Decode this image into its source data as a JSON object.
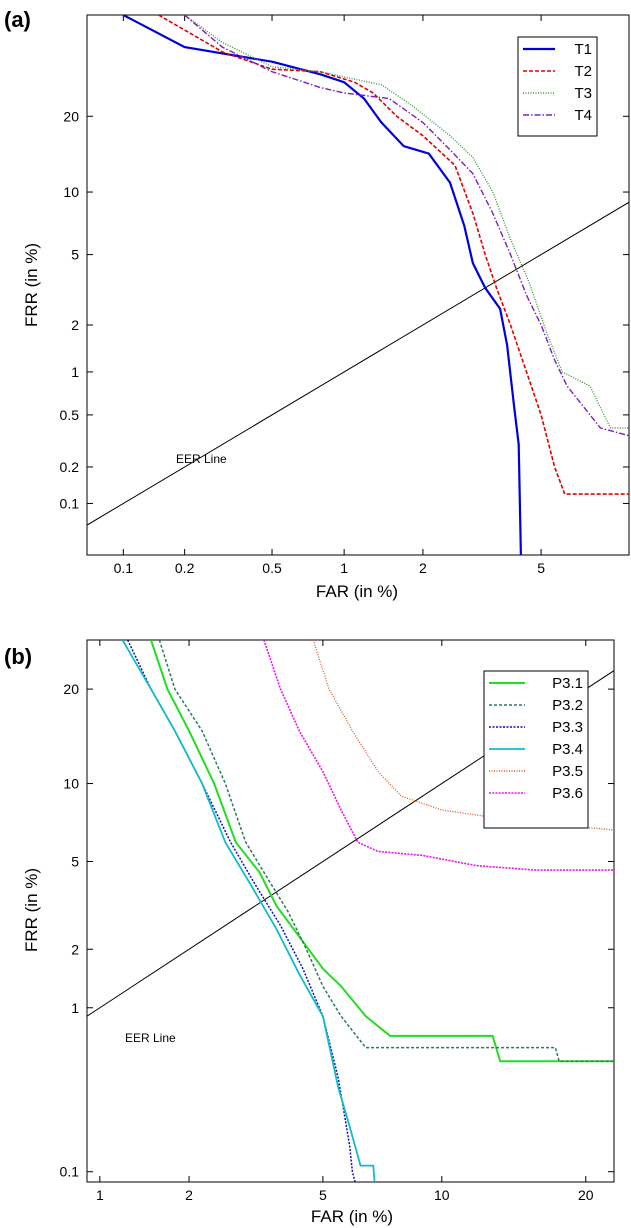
{
  "chart_data": [
    {
      "type": "line",
      "panel_label": "(a)",
      "xlabel": "FAR (in %)",
      "ylabel": "FRR (in %)",
      "xscale": "normal-deviate",
      "yscale": "normal-deviate",
      "xlim": [
        0.065,
        9.0
      ],
      "ylim": [
        0.035,
        40
      ],
      "xticks": [
        {
          "v": 0.1,
          "label": "0.1"
        },
        {
          "v": 0.2,
          "label": "0.2"
        },
        {
          "v": 0.5,
          "label": "0.5"
        },
        {
          "v": 1,
          "label": "1"
        },
        {
          "v": 2,
          "label": "2"
        },
        {
          "v": 5,
          "label": "5"
        }
      ],
      "yticks": [
        {
          "v": 0.1,
          "label": "0.1"
        },
        {
          "v": 0.2,
          "label": "0.2"
        },
        {
          "v": 0.5,
          "label": "0.5"
        },
        {
          "v": 1,
          "label": "1"
        },
        {
          "v": 2,
          "label": "2"
        },
        {
          "v": 5,
          "label": "5"
        },
        {
          "v": 10,
          "label": "10"
        },
        {
          "v": 20,
          "label": "20"
        }
      ],
      "eer_label": "EER Line",
      "legend_position": "top-right",
      "series": [
        {
          "name": "T1",
          "color": "#0000dd",
          "dash": "",
          "width": 2.2,
          "points": [
            [
              0.1,
              40
            ],
            [
              0.2,
              33
            ],
            [
              0.5,
              30
            ],
            [
              0.8,
              27.5
            ],
            [
              1.0,
              26
            ],
            [
              1.2,
              23
            ],
            [
              1.4,
              19
            ],
            [
              1.7,
              15.5
            ],
            [
              2.1,
              14.5
            ],
            [
              2.5,
              11
            ],
            [
              2.8,
              7
            ],
            [
              3.0,
              4.5
            ],
            [
              3.3,
              3.3
            ],
            [
              3.7,
              2.5
            ],
            [
              3.9,
              1.5
            ],
            [
              4.1,
              0.6
            ],
            [
              4.25,
              0.3
            ],
            [
              4.32,
              0.035
            ]
          ]
        },
        {
          "name": "T2",
          "color": "#e00000",
          "dash": "4,2",
          "width": 1.6,
          "points": [
            [
              0.15,
              40
            ],
            [
              0.3,
              32
            ],
            [
              0.5,
              28.5
            ],
            [
              0.8,
              28
            ],
            [
              1.1,
              26
            ],
            [
              1.3,
              24
            ],
            [
              1.6,
              20
            ],
            [
              2.0,
              17
            ],
            [
              2.6,
              13
            ],
            [
              3.0,
              8
            ],
            [
              3.3,
              5
            ],
            [
              3.6,
              3.3
            ],
            [
              4.0,
              2.0
            ],
            [
              4.5,
              1.0
            ],
            [
              5.0,
              0.5
            ],
            [
              5.5,
              0.2
            ],
            [
              5.9,
              0.12
            ],
            [
              9.0,
              0.12
            ]
          ]
        },
        {
          "name": "T3",
          "color": "#3a9a3a",
          "dash": "1,1.5",
          "width": 1.4,
          "points": [
            [
              0.2,
              40
            ],
            [
              0.3,
              34
            ],
            [
              0.5,
              29
            ],
            [
              0.8,
              28
            ],
            [
              1.0,
              27
            ],
            [
              1.4,
              25.5
            ],
            [
              1.8,
              22
            ],
            [
              2.5,
              17
            ],
            [
              3.0,
              14
            ],
            [
              3.5,
              10
            ],
            [
              4.0,
              6
            ],
            [
              4.6,
              3.5
            ],
            [
              5.2,
              1.8
            ],
            [
              5.8,
              1.0
            ],
            [
              7.0,
              0.8
            ],
            [
              8.0,
              0.4
            ],
            [
              9.0,
              0.4
            ]
          ]
        },
        {
          "name": "T4",
          "color": "#7a20c0",
          "dash": "6,2,1.5,2",
          "width": 1.4,
          "points": [
            [
              0.2,
              40
            ],
            [
              0.3,
              33
            ],
            [
              0.5,
              28
            ],
            [
              0.8,
              25
            ],
            [
              1.0,
              24
            ],
            [
              1.5,
              23
            ],
            [
              2.0,
              19
            ],
            [
              2.5,
              15
            ],
            [
              3.0,
              12
            ],
            [
              3.5,
              8
            ],
            [
              4.0,
              5
            ],
            [
              4.5,
              3.0
            ],
            [
              5.0,
              2.0
            ],
            [
              5.5,
              1.2
            ],
            [
              6.0,
              0.8
            ],
            [
              7.5,
              0.4
            ],
            [
              9.0,
              0.35
            ]
          ]
        }
      ]
    },
    {
      "type": "line",
      "panel_label": "(b)",
      "xlabel": "FAR (in %)",
      "ylabel": "FRR (in %)",
      "xscale": "normal-deviate",
      "yscale": "normal-deviate",
      "xlim": [
        0.9,
        22.5
      ],
      "ylim": [
        0.085,
        27
      ],
      "xticks": [
        {
          "v": 1,
          "label": "1"
        },
        {
          "v": 2,
          "label": "2"
        },
        {
          "v": 5,
          "label": "5"
        },
        {
          "v": 10,
          "label": "10"
        },
        {
          "v": 20,
          "label": "20"
        }
      ],
      "yticks": [
        {
          "v": 0.1,
          "label": "0.1"
        },
        {
          "v": 1,
          "label": "1"
        },
        {
          "v": 2,
          "label": "2"
        },
        {
          "v": 5,
          "label": "5"
        },
        {
          "v": 10,
          "label": "10"
        },
        {
          "v": 20,
          "label": "20"
        }
      ],
      "eer_label": "EER Line",
      "legend_position": "top-right",
      "series": [
        {
          "name": "P3.1",
          "color": "#22dd22",
          "dash": "",
          "width": 2.0,
          "points": [
            [
              1.5,
              27
            ],
            [
              1.7,
              20
            ],
            [
              2.0,
              15
            ],
            [
              2.4,
              10
            ],
            [
              2.8,
              6
            ],
            [
              3.3,
              4.5
            ],
            [
              3.7,
              3.2
            ],
            [
              4.3,
              2.3
            ],
            [
              5.0,
              1.6
            ],
            [
              5.6,
              1.3
            ],
            [
              6.5,
              0.9
            ],
            [
              7.5,
              0.7
            ],
            [
              13.0,
              0.7
            ],
            [
              13.5,
              0.5
            ],
            [
              22.5,
              0.5
            ]
          ]
        },
        {
          "name": "P3.2",
          "color": "#2a7a5a",
          "dash": "3,2",
          "width": 1.5,
          "points": [
            [
              1.6,
              27
            ],
            [
              1.8,
              20
            ],
            [
              2.2,
              15
            ],
            [
              2.6,
              10
            ],
            [
              3.0,
              6
            ],
            [
              3.5,
              4.2
            ],
            [
              4.0,
              3.0
            ],
            [
              4.5,
              2.0
            ],
            [
              5.0,
              1.3
            ],
            [
              5.6,
              0.9
            ],
            [
              6.5,
              0.6
            ],
            [
              17.5,
              0.6
            ],
            [
              17.8,
              0.5
            ],
            [
              22.5,
              0.5
            ]
          ]
        },
        {
          "name": "P3.3",
          "color": "#1010aa",
          "dash": "2,1.5",
          "width": 1.5,
          "points": [
            [
              1.25,
              27
            ],
            [
              1.5,
              20
            ],
            [
              1.8,
              15
            ],
            [
              2.2,
              10
            ],
            [
              2.7,
              6
            ],
            [
              3.2,
              4.0
            ],
            [
              3.8,
              2.6
            ],
            [
              4.4,
              1.6
            ],
            [
              5.0,
              0.9
            ],
            [
              5.5,
              0.4
            ],
            [
              5.9,
              0.15
            ],
            [
              6.0,
              0.1
            ],
            [
              6.1,
              0.085
            ]
          ]
        },
        {
          "name": "P3.4",
          "color": "#11bbcc",
          "dash": "",
          "width": 1.8,
          "points": [
            [
              1.2,
              27
            ],
            [
              1.5,
              20
            ],
            [
              1.8,
              15
            ],
            [
              2.2,
              10
            ],
            [
              2.6,
              6
            ],
            [
              3.1,
              4.0
            ],
            [
              3.7,
              2.5
            ],
            [
              4.3,
              1.5
            ],
            [
              5.0,
              0.9
            ],
            [
              5.5,
              0.35
            ],
            [
              5.9,
              0.2
            ],
            [
              6.3,
              0.11
            ],
            [
              6.8,
              0.11
            ],
            [
              6.85,
              0.085
            ]
          ]
        },
        {
          "name": "P3.5",
          "color": "#dd5522",
          "dash": "1,1.5",
          "width": 1.3,
          "points": [
            [
              4.7,
              27
            ],
            [
              5.2,
              20
            ],
            [
              6.0,
              15
            ],
            [
              7.0,
              11
            ],
            [
              8.0,
              9
            ],
            [
              10.0,
              8
            ],
            [
              13.0,
              7.5
            ],
            [
              17.0,
              7.0
            ],
            [
              21.0,
              6.8
            ],
            [
              22.5,
              6.7
            ]
          ]
        },
        {
          "name": "P3.6",
          "color": "#ee11ee",
          "dash": "2,1.2",
          "width": 1.6,
          "points": [
            [
              3.4,
              27
            ],
            [
              3.8,
              20
            ],
            [
              4.3,
              15
            ],
            [
              5.0,
              11
            ],
            [
              5.6,
              8
            ],
            [
              6.2,
              6
            ],
            [
              7.0,
              5.5
            ],
            [
              9.0,
              5.3
            ],
            [
              12.0,
              4.8
            ],
            [
              16.0,
              4.6
            ],
            [
              22.5,
              4.6
            ]
          ]
        }
      ]
    }
  ]
}
